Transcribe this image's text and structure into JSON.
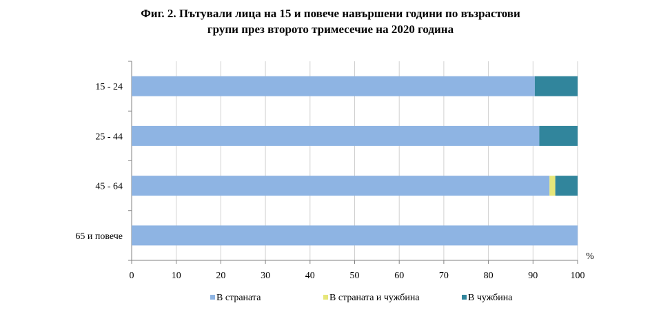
{
  "chart_data": {
    "type": "bar",
    "orientation": "horizontal",
    "stacked": true,
    "title_lines": [
      "Фиг. 2. Пътували лица на 15 и повече навършени години по възрастови",
      "групи през второто тримесечие на 2020 година"
    ],
    "categories": [
      "15 - 24",
      "25 - 44",
      "45 - 64",
      "65 и повече"
    ],
    "series": [
      {
        "name": "В страната",
        "color": "#8eb4e3",
        "values": [
          90.4,
          91.4,
          93.7,
          100
        ]
      },
      {
        "name": "В страната и чужбина",
        "color": "#e6e67a",
        "values": [
          0,
          0,
          1.3,
          0
        ]
      },
      {
        "name": "В чужбина",
        "color": "#31859c",
        "values": [
          9.6,
          8.6,
          5.0,
          0
        ]
      }
    ],
    "xlim": [
      0,
      100
    ],
    "xticks": [
      "0",
      "10",
      "20",
      "30",
      "40",
      "50",
      "60",
      "70",
      "80",
      "90",
      "100"
    ],
    "unit": "%",
    "grid": "vertical",
    "legend_position": "bottom"
  }
}
